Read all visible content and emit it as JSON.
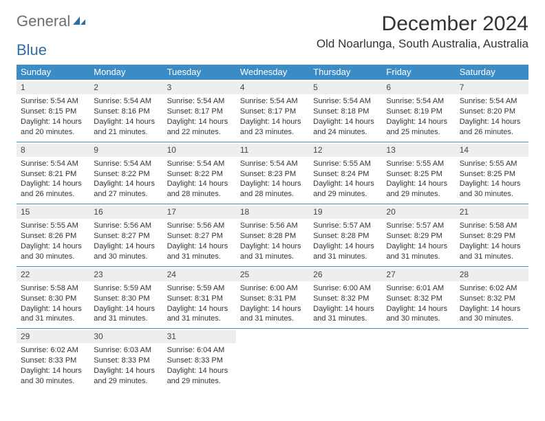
{
  "logo": {
    "word1": "General",
    "word2": "Blue"
  },
  "title": "December 2024",
  "location": "Old Noarlunga, South Australia, Australia",
  "colors": {
    "header_bg": "#3b8bc5",
    "header_text": "#ffffff",
    "daynum_bg": "#eeeeee",
    "rule": "#3b8bc5",
    "body_text": "#333333",
    "logo_grey": "#6e6e6e",
    "logo_blue": "#2f6fa8"
  },
  "weekday_labels": [
    "Sunday",
    "Monday",
    "Tuesday",
    "Wednesday",
    "Thursday",
    "Friday",
    "Saturday"
  ],
  "weeks": [
    [
      {
        "n": "1",
        "sr": "5:54 AM",
        "ss": "8:15 PM",
        "dl": "14 hours and 20 minutes."
      },
      {
        "n": "2",
        "sr": "5:54 AM",
        "ss": "8:16 PM",
        "dl": "14 hours and 21 minutes."
      },
      {
        "n": "3",
        "sr": "5:54 AM",
        "ss": "8:17 PM",
        "dl": "14 hours and 22 minutes."
      },
      {
        "n": "4",
        "sr": "5:54 AM",
        "ss": "8:17 PM",
        "dl": "14 hours and 23 minutes."
      },
      {
        "n": "5",
        "sr": "5:54 AM",
        "ss": "8:18 PM",
        "dl": "14 hours and 24 minutes."
      },
      {
        "n": "6",
        "sr": "5:54 AM",
        "ss": "8:19 PM",
        "dl": "14 hours and 25 minutes."
      },
      {
        "n": "7",
        "sr": "5:54 AM",
        "ss": "8:20 PM",
        "dl": "14 hours and 26 minutes."
      }
    ],
    [
      {
        "n": "8",
        "sr": "5:54 AM",
        "ss": "8:21 PM",
        "dl": "14 hours and 26 minutes."
      },
      {
        "n": "9",
        "sr": "5:54 AM",
        "ss": "8:22 PM",
        "dl": "14 hours and 27 minutes."
      },
      {
        "n": "10",
        "sr": "5:54 AM",
        "ss": "8:22 PM",
        "dl": "14 hours and 28 minutes."
      },
      {
        "n": "11",
        "sr": "5:54 AM",
        "ss": "8:23 PM",
        "dl": "14 hours and 28 minutes."
      },
      {
        "n": "12",
        "sr": "5:55 AM",
        "ss": "8:24 PM",
        "dl": "14 hours and 29 minutes."
      },
      {
        "n": "13",
        "sr": "5:55 AM",
        "ss": "8:25 PM",
        "dl": "14 hours and 29 minutes."
      },
      {
        "n": "14",
        "sr": "5:55 AM",
        "ss": "8:25 PM",
        "dl": "14 hours and 30 minutes."
      }
    ],
    [
      {
        "n": "15",
        "sr": "5:55 AM",
        "ss": "8:26 PM",
        "dl": "14 hours and 30 minutes."
      },
      {
        "n": "16",
        "sr": "5:56 AM",
        "ss": "8:27 PM",
        "dl": "14 hours and 30 minutes."
      },
      {
        "n": "17",
        "sr": "5:56 AM",
        "ss": "8:27 PM",
        "dl": "14 hours and 31 minutes."
      },
      {
        "n": "18",
        "sr": "5:56 AM",
        "ss": "8:28 PM",
        "dl": "14 hours and 31 minutes."
      },
      {
        "n": "19",
        "sr": "5:57 AM",
        "ss": "8:28 PM",
        "dl": "14 hours and 31 minutes."
      },
      {
        "n": "20",
        "sr": "5:57 AM",
        "ss": "8:29 PM",
        "dl": "14 hours and 31 minutes."
      },
      {
        "n": "21",
        "sr": "5:58 AM",
        "ss": "8:29 PM",
        "dl": "14 hours and 31 minutes."
      }
    ],
    [
      {
        "n": "22",
        "sr": "5:58 AM",
        "ss": "8:30 PM",
        "dl": "14 hours and 31 minutes."
      },
      {
        "n": "23",
        "sr": "5:59 AM",
        "ss": "8:30 PM",
        "dl": "14 hours and 31 minutes."
      },
      {
        "n": "24",
        "sr": "5:59 AM",
        "ss": "8:31 PM",
        "dl": "14 hours and 31 minutes."
      },
      {
        "n": "25",
        "sr": "6:00 AM",
        "ss": "8:31 PM",
        "dl": "14 hours and 31 minutes."
      },
      {
        "n": "26",
        "sr": "6:00 AM",
        "ss": "8:32 PM",
        "dl": "14 hours and 31 minutes."
      },
      {
        "n": "27",
        "sr": "6:01 AM",
        "ss": "8:32 PM",
        "dl": "14 hours and 30 minutes."
      },
      {
        "n": "28",
        "sr": "6:02 AM",
        "ss": "8:32 PM",
        "dl": "14 hours and 30 minutes."
      }
    ],
    [
      {
        "n": "29",
        "sr": "6:02 AM",
        "ss": "8:33 PM",
        "dl": "14 hours and 30 minutes."
      },
      {
        "n": "30",
        "sr": "6:03 AM",
        "ss": "8:33 PM",
        "dl": "14 hours and 29 minutes."
      },
      {
        "n": "31",
        "sr": "6:04 AM",
        "ss": "8:33 PM",
        "dl": "14 hours and 29 minutes."
      },
      null,
      null,
      null,
      null
    ]
  ]
}
